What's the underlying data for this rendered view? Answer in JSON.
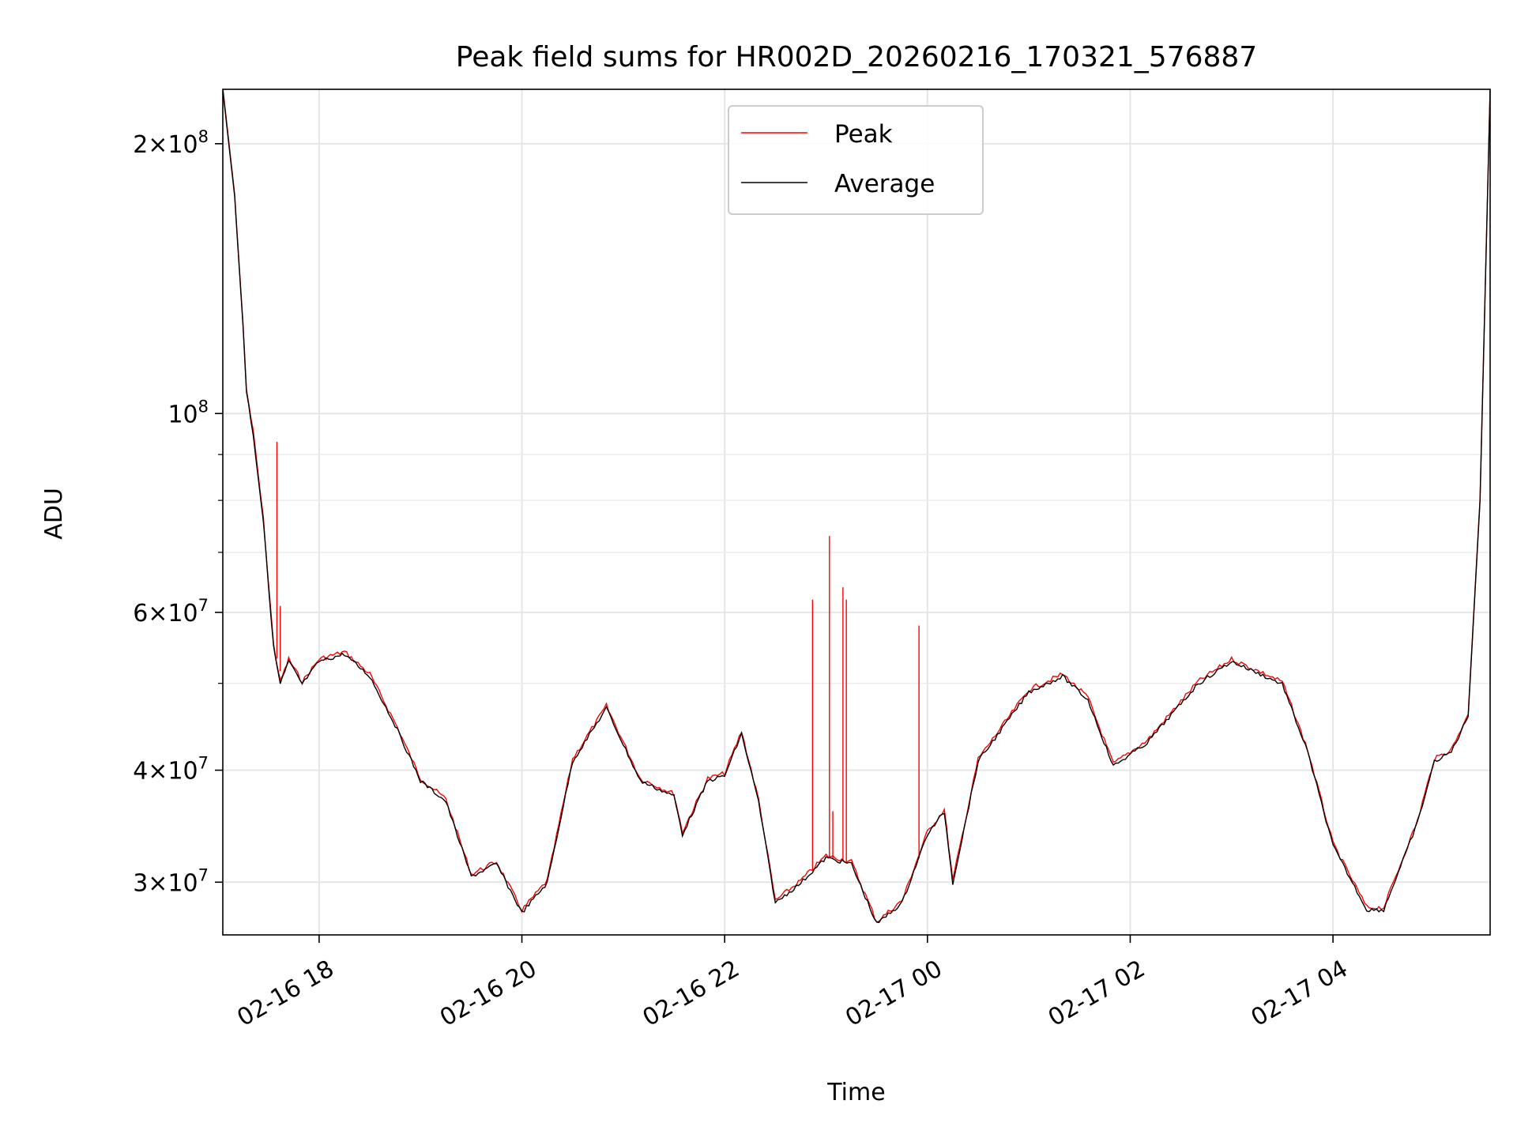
{
  "chart_data": {
    "type": "line",
    "title": "Peak field sums for HR002D_20260216_170321_576887",
    "xlabel": "Time",
    "ylabel": "ADU",
    "yscale": "log",
    "ylim": [
      26200000,
      230000000
    ],
    "xlim": [
      "2026-02-16 17:03",
      "2026-02-17 05:33"
    ],
    "grid": true,
    "legend": "upper center",
    "colors": {
      "Peak": "#ff0000",
      "Average": "#000000"
    },
    "x_ticks": [
      {
        "value": "2026-02-16 18:00",
        "label": "02-16 18"
      },
      {
        "value": "2026-02-16 20:00",
        "label": "02-16 20"
      },
      {
        "value": "2026-02-16 22:00",
        "label": "02-16 22"
      },
      {
        "value": "2026-02-17 00:00",
        "label": "02-17 00"
      },
      {
        "value": "2026-02-17 02:00",
        "label": "02-17 02"
      },
      {
        "value": "2026-02-17 04:00",
        "label": "02-17 04"
      }
    ],
    "y_ticks": [
      {
        "value": 200000000,
        "label": "2×10",
        "exp": "8"
      },
      {
        "value": 100000000,
        "label": "10",
        "exp": "8"
      },
      {
        "value": 60000000,
        "label": "6×10",
        "exp": "7"
      },
      {
        "value": 40000000,
        "label": "4×10",
        "exp": "7"
      },
      {
        "value": 30000000,
        "label": "3×10",
        "exp": "7"
      }
    ],
    "y_minor_ticks": [
      90000000,
      80000000,
      70000000,
      50000000
    ],
    "series": [
      {
        "name": "Average",
        "x": [
          "2026-02-16 17:03",
          "2026-02-16 17:10",
          "2026-02-16 17:15",
          "2026-02-16 17:17",
          "2026-02-16 17:21",
          "2026-02-16 17:27",
          "2026-02-16 17:33",
          "2026-02-16 17:37",
          "2026-02-16 17:42",
          "2026-02-16 17:50",
          "2026-02-16 18:00",
          "2026-02-16 18:15",
          "2026-02-16 18:30",
          "2026-02-16 18:45",
          "2026-02-16 19:00",
          "2026-02-16 19:15",
          "2026-02-16 19:30",
          "2026-02-16 19:45",
          "2026-02-16 20:00",
          "2026-02-16 20:15",
          "2026-02-16 20:30",
          "2026-02-16 20:50",
          "2026-02-16 21:10",
          "2026-02-16 21:30",
          "2026-02-16 21:35",
          "2026-02-16 21:50",
          "2026-02-16 22:00",
          "2026-02-16 22:10",
          "2026-02-16 22:20",
          "2026-02-16 22:30",
          "2026-02-16 22:45",
          "2026-02-16 23:00",
          "2026-02-16 23:15",
          "2026-02-16 23:30",
          "2026-02-16 23:45",
          "2026-02-17 00:00",
          "2026-02-17 00:10",
          "2026-02-17 00:15",
          "2026-02-17 00:30",
          "2026-02-17 01:00",
          "2026-02-17 01:20",
          "2026-02-17 01:35",
          "2026-02-17 01:50",
          "2026-02-17 02:10",
          "2026-02-17 02:40",
          "2026-02-17 03:00",
          "2026-02-17 03:30",
          "2026-02-17 03:45",
          "2026-02-17 04:00",
          "2026-02-17 04:20",
          "2026-02-17 04:30",
          "2026-02-17 04:50",
          "2026-02-17 05:00",
          "2026-02-17 05:10",
          "2026-02-17 05:20",
          "2026-02-17 05:27",
          "2026-02-17 05:33"
        ],
        "y": [
          230000000,
          175000000,
          125000000,
          106000000,
          95000000,
          76000000,
          55000000,
          50000000,
          53000000,
          50000000,
          53000000,
          54000000,
          51000000,
          45000000,
          39000000,
          37000000,
          30500000,
          31500000,
          27800000,
          30000000,
          41000000,
          47000000,
          39000000,
          37500000,
          34000000,
          39000000,
          39500000,
          44000000,
          37000000,
          28500000,
          30000000,
          32000000,
          31500000,
          27000000,
          28500000,
          34000000,
          36000000,
          30000000,
          41000000,
          49000000,
          51000000,
          48000000,
          40500000,
          43000000,
          50000000,
          53000000,
          50000000,
          42000000,
          33000000,
          28000000,
          28000000,
          35000000,
          41000000,
          42000000,
          46000000,
          80000000,
          230000000
        ]
      },
      {
        "name": "Peak",
        "spikes": [
          {
            "x": "2026-02-16 17:35",
            "y": 93000000
          },
          {
            "x": "2026-02-16 17:37",
            "y": 61000000
          },
          {
            "x": "2026-02-16 22:52",
            "y": 62000000
          },
          {
            "x": "2026-02-16 23:02",
            "y": 73000000
          },
          {
            "x": "2026-02-16 23:04",
            "y": 36000000
          },
          {
            "x": "2026-02-16 23:10",
            "y": 64000000
          },
          {
            "x": "2026-02-16 23:12",
            "y": 62000000
          },
          {
            "x": "2026-02-16 23:55",
            "y": 58000000
          }
        ]
      }
    ]
  }
}
